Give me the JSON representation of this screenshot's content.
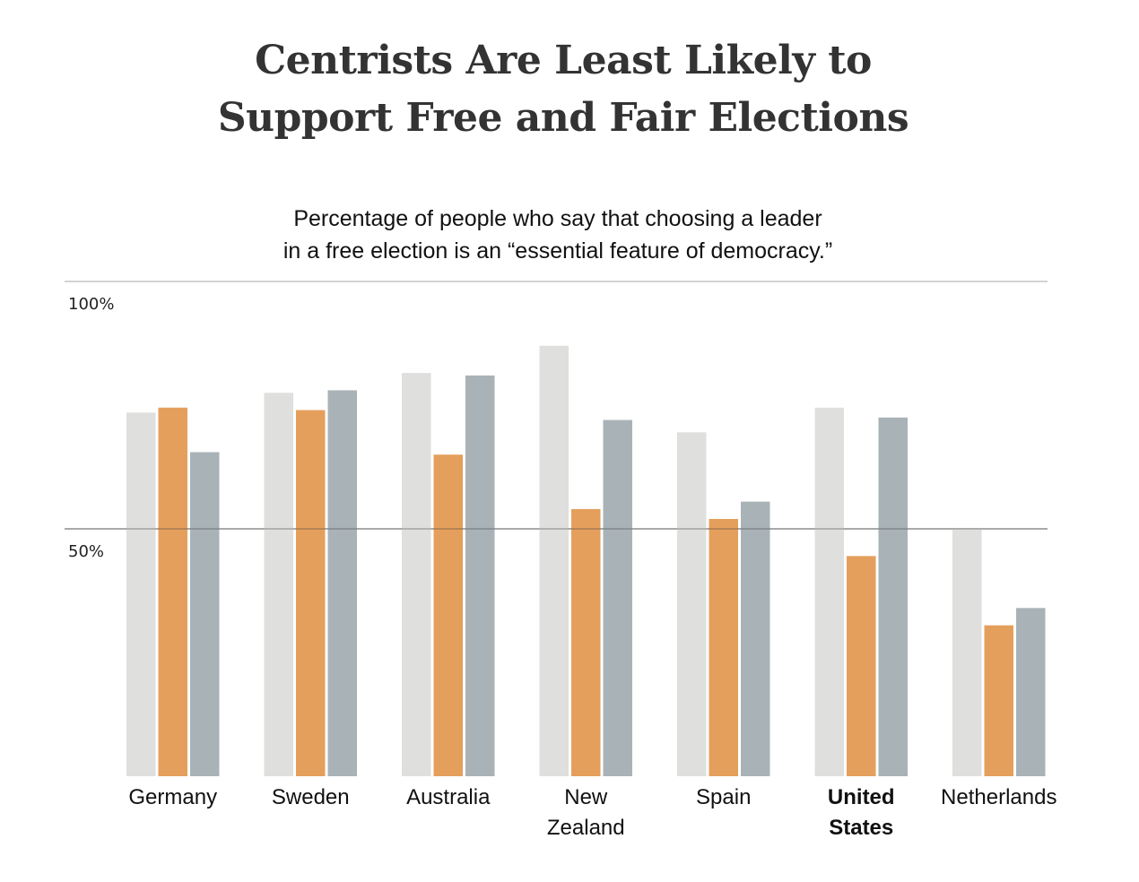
{
  "chart_data": {
    "type": "bar",
    "title": "Centrists Are Least Likely to Support Free and Fair Elections",
    "title_lines": [
      "Centrists Are Least Likely to",
      "Support Free and Fair Elections"
    ],
    "subtitle_lines": [
      "Percentage of people who say that choosing a leader",
      "in a free election is an “essential feature of democracy.”"
    ],
    "xlabel": "",
    "ylabel": "",
    "ylim": [
      0,
      100
    ],
    "yticks": [
      {
        "value": 100,
        "label": "100%"
      },
      {
        "value": 50,
        "label": "50%"
      }
    ],
    "grid": true,
    "legend": "none",
    "categories": [
      {
        "lines": [
          "Germany"
        ],
        "bold": false
      },
      {
        "lines": [
          "Sweden"
        ],
        "bold": false
      },
      {
        "lines": [
          "Australia"
        ],
        "bold": false
      },
      {
        "lines": [
          "New",
          "Zealand"
        ],
        "bold": false
      },
      {
        "lines": [
          "Spain"
        ],
        "bold": false
      },
      {
        "lines": [
          "United",
          "States"
        ],
        "bold": true
      },
      {
        "lines": [
          "Netherlands"
        ],
        "bold": false
      }
    ],
    "series": [
      {
        "name": "series-1",
        "color": "#dfdfdd",
        "values": [
          73.5,
          77.5,
          81.5,
          87,
          69.5,
          74.5,
          50
        ]
      },
      {
        "name": "series-2",
        "color": "#e59f5c",
        "values": [
          74.5,
          74,
          65,
          54,
          52,
          44.5,
          30.5
        ]
      },
      {
        "name": "series-3",
        "color": "#a9b3b7",
        "values": [
          65.5,
          78,
          81,
          72,
          55.5,
          72.5,
          34
        ]
      }
    ]
  }
}
